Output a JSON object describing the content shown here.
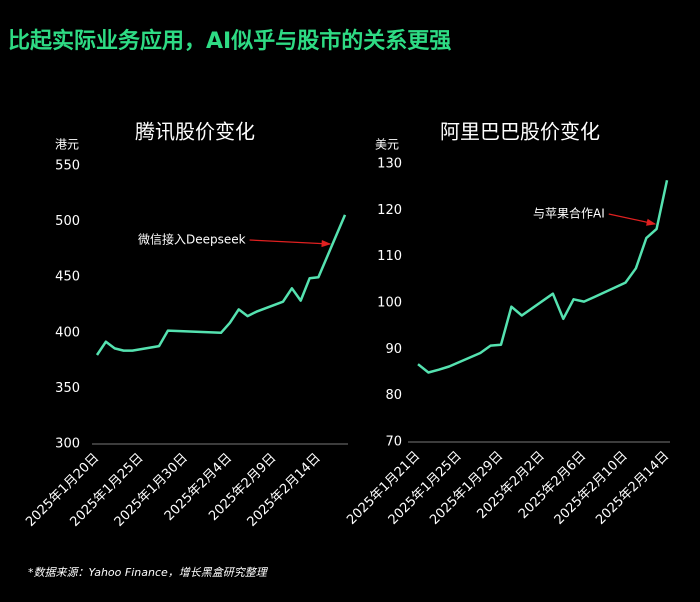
{
  "title": "比起实际业务应用，AI似乎与股市的关系更强",
  "footnote": "*数据来源：Yahoo Finance，增长黑盒研究整理",
  "chart_data": [
    {
      "type": "line",
      "title": "腾讯股价变化",
      "y_label": "港元",
      "color": "#55e2b0",
      "annotation": "微信接入Deepseek",
      "x": [
        "2025-01-20",
        "2025-01-21",
        "2025-01-22",
        "2025-01-23",
        "2025-01-24",
        "2025-01-27",
        "2025-01-28",
        "2025-02-03",
        "2025-02-04",
        "2025-02-05",
        "2025-02-06",
        "2025-02-07",
        "2025-02-10",
        "2025-02-11",
        "2025-02-12",
        "2025-02-13",
        "2025-02-14",
        "2025-02-17"
      ],
      "values": [
        380,
        392,
        386,
        384,
        384,
        388,
        402,
        400,
        409,
        421,
        415,
        419,
        428,
        440,
        429,
        449,
        450,
        506
      ],
      "xlim": [
        "2025-01-20",
        "2025-02-17"
      ],
      "xticks": [
        {
          "value": "2025-01-20",
          "label": "2025年1月20日"
        },
        {
          "value": "2025-01-25",
          "label": "2025年1月25日"
        },
        {
          "value": "2025-01-30",
          "label": "2025年1月30日"
        },
        {
          "value": "2025-02-04",
          "label": "2025年2月4日"
        },
        {
          "value": "2025-02-09",
          "label": "2025年2月9日"
        },
        {
          "value": "2025-02-14",
          "label": "2025年2月14日"
        }
      ],
      "ylim": [
        300,
        550
      ],
      "yticks": [
        300,
        350,
        400,
        450,
        500,
        550
      ],
      "grid": false
    },
    {
      "type": "line",
      "title": "阿里巴巴股价变化",
      "y_label": "美元",
      "color": "#55e2b0",
      "annotation": "与苹果合作AI",
      "x": [
        "2025-01-21",
        "2025-01-22",
        "2025-01-23",
        "2025-01-24",
        "2025-01-27",
        "2025-01-28",
        "2025-01-29",
        "2025-01-30",
        "2025-01-31",
        "2025-02-03",
        "2025-02-04",
        "2025-02-05",
        "2025-02-06",
        "2025-02-07",
        "2025-02-10",
        "2025-02-11",
        "2025-02-12",
        "2025-02-13",
        "2025-02-14"
      ],
      "values": [
        86.8,
        85.0,
        85.6,
        86.3,
        89.2,
        90.8,
        91.0,
        99.2,
        97.3,
        102.0,
        96.6,
        100.8,
        100.3,
        101.3,
        104.4,
        107.5,
        114.0,
        116.0,
        126.5
      ],
      "xlim": [
        "2025-01-21",
        "2025-02-14"
      ],
      "xticks": [
        {
          "value": "2025-01-21",
          "label": "2025年1月21日"
        },
        {
          "value": "2025-01-25",
          "label": "2025年1月25日"
        },
        {
          "value": "2025-01-29",
          "label": "2025年1月29日"
        },
        {
          "value": "2025-02-02",
          "label": "2025年2月2日"
        },
        {
          "value": "2025-02-06",
          "label": "2025年2月6日"
        },
        {
          "value": "2025-02-10",
          "label": "2025年2月10日"
        },
        {
          "value": "2025-02-14",
          "label": "2025年2月14日"
        }
      ],
      "ylim": [
        70,
        130
      ],
      "yticks": [
        70,
        80,
        90,
        100,
        110,
        120,
        130
      ],
      "grid": false
    }
  ]
}
